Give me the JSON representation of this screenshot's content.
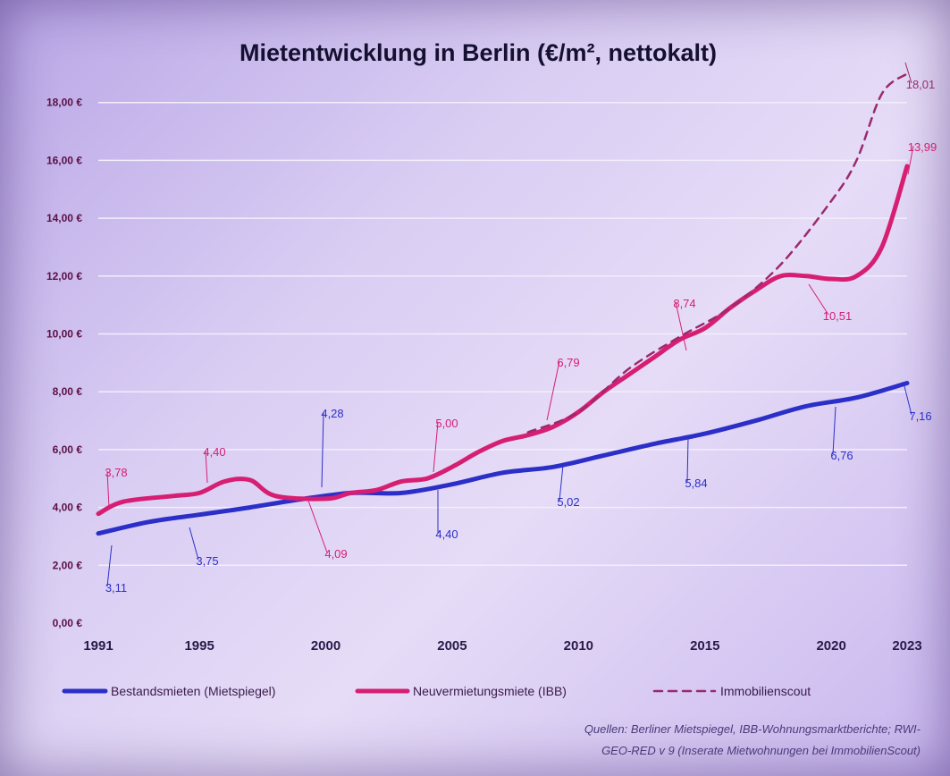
{
  "chart_data": {
    "type": "line",
    "title": "Mietentwicklung in Berlin  (€/m², nettokalt)",
    "y_ticks": [
      "0,00 €",
      "2,00 €",
      "4,00 €",
      "6,00 €",
      "8,00 €",
      "10,00 €",
      "12,00 €",
      "14,00 €",
      "16,00 €",
      "18,00 €"
    ],
    "x_ticks": [
      "1991",
      "1995",
      "2000",
      "2005",
      "2010",
      "2015",
      "2020",
      "2023"
    ],
    "ylim": [
      0,
      20
    ],
    "xlim": [
      1991,
      2023
    ],
    "grid": true,
    "legend_position": "bottom",
    "series": [
      {
        "name": "Bestandsmieten (Mietspiegel)",
        "color": "#2b2fc8",
        "style": "solid",
        "x": [
          1991,
          1993,
          1995,
          1997,
          1999,
          2001,
          2003,
          2005,
          2007,
          2009,
          2011,
          2013,
          2015,
          2017,
          2019,
          2021,
          2023
        ],
        "values": [
          3.1,
          3.5,
          3.75,
          4.0,
          4.28,
          4.5,
          4.5,
          4.8,
          5.2,
          5.4,
          5.8,
          6.2,
          6.55,
          7.0,
          7.5,
          7.8,
          8.3
        ]
      },
      {
        "name": "Neuvermietungsmiete (IBB)",
        "color": "#d61e72",
        "style": "solid",
        "x": [
          1991,
          1992,
          1994,
          1995,
          1996,
          1997,
          1998,
          2000,
          2001,
          2002,
          2003,
          2004,
          2005,
          2006,
          2007,
          2008,
          2009,
          2010,
          2011,
          2012,
          2013,
          2014,
          2015,
          2016,
          2017,
          2018,
          2019,
          2020,
          2021,
          2022,
          2023
        ],
        "values": [
          3.78,
          4.2,
          4.4,
          4.5,
          4.9,
          4.95,
          4.4,
          4.3,
          4.5,
          4.6,
          4.9,
          5.0,
          5.4,
          5.9,
          6.3,
          6.5,
          6.79,
          7.3,
          8.0,
          8.6,
          9.2,
          9.8,
          10.2,
          10.9,
          11.5,
          12.0,
          12.0,
          11.9,
          12.0,
          13.0,
          15.8
        ]
      },
      {
        "name": "Immobilienscout",
        "color": "#9a2a6e",
        "style": "dashed",
        "x": [
          2008,
          2010,
          2012,
          2014,
          2016,
          2018,
          2020,
          2021,
          2022,
          2023
        ],
        "values": [
          6.6,
          7.3,
          8.8,
          9.9,
          10.9,
          12.4,
          14.6,
          16.0,
          18.3,
          19.0
        ]
      }
    ],
    "data_labels": [
      {
        "text": "3,11",
        "series": "Bestandsmieten (Mietspiegel)"
      },
      {
        "text": "3,75",
        "series": "Bestandsmieten (Mietspiegel)"
      },
      {
        "text": "4,28",
        "series": "Bestandsmieten (Mietspiegel)"
      },
      {
        "text": "4,40",
        "series": "Bestandsmieten (Mietspiegel)"
      },
      {
        "text": "5,02",
        "series": "Bestandsmieten (Mietspiegel)"
      },
      {
        "text": "5,84",
        "series": "Bestandsmieten (Mietspiegel)"
      },
      {
        "text": "6,76",
        "series": "Bestandsmieten (Mietspiegel)"
      },
      {
        "text": "7,16",
        "series": "Bestandsmieten (Mietspiegel)"
      },
      {
        "text": "3,78",
        "series": "Neuvermietungsmiete (IBB)"
      },
      {
        "text": "4,40",
        "series": "Neuvermietungsmiete (IBB)"
      },
      {
        "text": "4,09",
        "series": "Neuvermietungsmiete (IBB)"
      },
      {
        "text": "5,00",
        "series": "Neuvermietungsmiete (IBB)"
      },
      {
        "text": "6,79",
        "series": "Neuvermietungsmiete (IBB)"
      },
      {
        "text": "8,74",
        "series": "Neuvermietungsmiete (IBB)"
      },
      {
        "text": "10,51",
        "series": "Neuvermietungsmiete (IBB)"
      },
      {
        "text": "13,99",
        "series": "Neuvermietungsmiete (IBB)"
      },
      {
        "text": "18,01",
        "series": "Immobilienscout"
      }
    ],
    "source": [
      "Quellen: Berliner Mietspiegel, IBB-Wohnungsmarktberichte; RWI-",
      "GEO-RED v 9 (Inserate Mietwohnungen bei ImmobilienScout)"
    ]
  }
}
